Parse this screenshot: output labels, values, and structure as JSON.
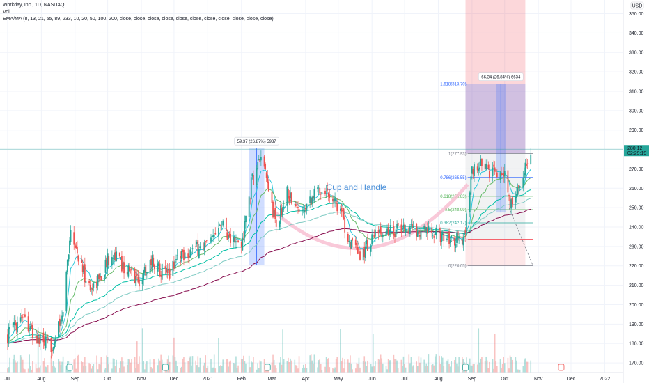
{
  "header": {
    "symbol_line": "Workday, Inc., 1D, NASDAQ",
    "vol_label": "Vol",
    "ema_line": "EMA/MA (8, 13, 21, 55, 89, 233, 10, 20, 50, 100, 200, close, close, close, close, close, close, close, close, close, close, close)"
  },
  "currency": "USD",
  "last_price": {
    "value": "280.12",
    "countdown": "02:29:19"
  },
  "colors": {
    "up": "#26a69a",
    "down": "#ef5350",
    "price_line": "#26a69a",
    "cup_arc": "#f8bbd0",
    "cup_text": "#4a90d9",
    "measure_fill": "#2962ff",
    "fib_text": "#2962ff",
    "target_fill": "#2962ff",
    "stop_fill": "#f23645"
  },
  "chart_data": {
    "type": "candlestick",
    "title": "Workday, Inc., 1D, NASDAQ",
    "ylim": [
      165,
      357
    ],
    "y_ticks": [
      170,
      180,
      190,
      200,
      210,
      220,
      230,
      240,
      250,
      260,
      270,
      280,
      290,
      300,
      310,
      320,
      330,
      340,
      350
    ],
    "x_ticks": [
      "Jul",
      "Aug",
      "Sep",
      "Oct",
      "Nov",
      "Dec",
      "2021",
      "Feb",
      "Mar",
      "Apr",
      "May",
      "Jun",
      "Jul",
      "Aug",
      "Sep",
      "Oct",
      "Nov",
      "Dec",
      "2022"
    ],
    "price_path": [
      {
        "date": "2020-07-01",
        "close": 184
      },
      {
        "date": "2020-07-15",
        "close": 196
      },
      {
        "date": "2020-07-25",
        "close": 183
      },
      {
        "date": "2020-08-10",
        "close": 178
      },
      {
        "date": "2020-08-20",
        "close": 192
      },
      {
        "date": "2020-08-28",
        "close": 240
      },
      {
        "date": "2020-09-05",
        "close": 222
      },
      {
        "date": "2020-09-15",
        "close": 208
      },
      {
        "date": "2020-09-25",
        "close": 215
      },
      {
        "date": "2020-10-05",
        "close": 228
      },
      {
        "date": "2020-10-15",
        "close": 220
      },
      {
        "date": "2020-10-30",
        "close": 212
      },
      {
        "date": "2020-11-10",
        "close": 223
      },
      {
        "date": "2020-11-25",
        "close": 215
      },
      {
        "date": "2020-12-05",
        "close": 226
      },
      {
        "date": "2020-12-20",
        "close": 228
      },
      {
        "date": "2021-01-05",
        "close": 232
      },
      {
        "date": "2021-01-12",
        "close": 245
      },
      {
        "date": "2021-01-22",
        "close": 234
      },
      {
        "date": "2021-02-01",
        "close": 230
      },
      {
        "date": "2021-02-10",
        "close": 262
      },
      {
        "date": "2021-02-18",
        "close": 275
      },
      {
        "date": "2021-02-25",
        "close": 262
      },
      {
        "date": "2021-03-05",
        "close": 240
      },
      {
        "date": "2021-03-15",
        "close": 258
      },
      {
        "date": "2021-03-25",
        "close": 248
      },
      {
        "date": "2021-04-05",
        "close": 255
      },
      {
        "date": "2021-04-15",
        "close": 260
      },
      {
        "date": "2021-04-25",
        "close": 257
      },
      {
        "date": "2021-05-03",
        "close": 248
      },
      {
        "date": "2021-05-12",
        "close": 232
      },
      {
        "date": "2021-05-20",
        "close": 224
      },
      {
        "date": "2021-06-01",
        "close": 234
      },
      {
        "date": "2021-06-15",
        "close": 238
      },
      {
        "date": "2021-06-30",
        "close": 240
      },
      {
        "date": "2021-07-15",
        "close": 238
      },
      {
        "date": "2021-07-30",
        "close": 236
      },
      {
        "date": "2021-08-15",
        "close": 234
      },
      {
        "date": "2021-08-25",
        "close": 235
      },
      {
        "date": "2021-09-01",
        "close": 268
      },
      {
        "date": "2021-09-10",
        "close": 273
      },
      {
        "date": "2021-09-20",
        "close": 267
      },
      {
        "date": "2021-09-30",
        "close": 270
      },
      {
        "date": "2021-10-06",
        "close": 250
      },
      {
        "date": "2021-10-12",
        "close": 258
      },
      {
        "date": "2021-10-20",
        "close": 270
      },
      {
        "date": "2021-10-25",
        "close": 280
      }
    ],
    "measure_labels": [
      {
        "text": "59.37 (26.87%) 5937",
        "from": 220.5,
        "to": 280.5
      },
      {
        "text": "66.34 (26.84%) 6634",
        "from": 247.5,
        "to": 313.7
      }
    ],
    "fib_levels": [
      {
        "label": "1.618(313.70)",
        "value": 313.7
      },
      {
        "label": "1(277.93)",
        "value": 277.93
      },
      {
        "label": "0.786(265.55)",
        "value": 265.55
      },
      {
        "label": "0.618(255.83)",
        "value": 255.83
      },
      {
        "label": "0.5(248.99)",
        "value": 248.99
      },
      {
        "label": "0.382(242.17)",
        "value": 242.17
      },
      {
        "label": "(233.73)",
        "value": 233.73
      },
      {
        "label": "0(220.05)",
        "value": 220.05
      }
    ],
    "annotations": [
      {
        "text": "Cup and Handle"
      }
    ]
  }
}
